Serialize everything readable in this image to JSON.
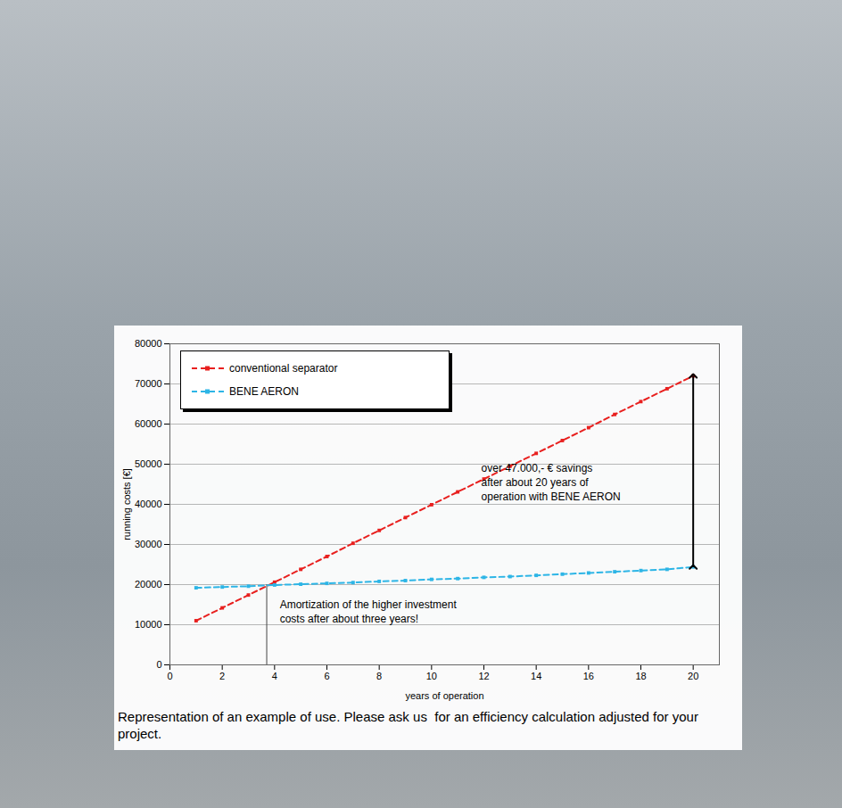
{
  "chart_data": {
    "type": "line",
    "x_label": "years of operation",
    "y_label": "running costs [€]",
    "x": [
      1,
      2,
      3,
      4,
      5,
      6,
      7,
      8,
      9,
      10,
      11,
      12,
      13,
      14,
      15,
      16,
      17,
      18,
      19,
      20
    ],
    "series": [
      {
        "name": "conventional separator",
        "color": "#e8201f",
        "marker": "square",
        "line_style": "dashed",
        "values": [
          11000,
          14200,
          17400,
          20600,
          23800,
          27000,
          30300,
          33500,
          36700,
          39900,
          43100,
          46300,
          49500,
          52700,
          55900,
          59100,
          62400,
          65600,
          68800,
          72000
        ]
      },
      {
        "name": "BENE AERON",
        "color": "#2db5e6",
        "marker": "square",
        "line_style": "dashed",
        "values": [
          19200,
          19400,
          19600,
          19900,
          20100,
          20300,
          20500,
          20800,
          21000,
          21300,
          21500,
          21800,
          22000,
          22300,
          22600,
          22900,
          23200,
          23500,
          23800,
          24400
        ]
      }
    ],
    "xlim": [
      0,
      21
    ],
    "xticks": [
      0,
      2,
      4,
      6,
      8,
      10,
      12,
      14,
      16,
      18,
      20
    ],
    "ylim": [
      0,
      80000
    ],
    "yticks": [
      0,
      10000,
      20000,
      30000,
      40000,
      50000,
      60000,
      70000,
      80000
    ],
    "grid": true,
    "legend": "top-left",
    "annotations": [
      {
        "lines": [
          "over 47.000,- € savings",
          "after about 20 years of",
          "operation with BENE AERON"
        ],
        "x": 20
      },
      {
        "lines": [
          "Amortization of the higher investment",
          "costs after about three years!"
        ],
        "x": 3.7,
        "y": 20000
      }
    ],
    "caption": "Representation of an example of use. Please ask us  for an efficiency calculation adjusted for your project."
  }
}
